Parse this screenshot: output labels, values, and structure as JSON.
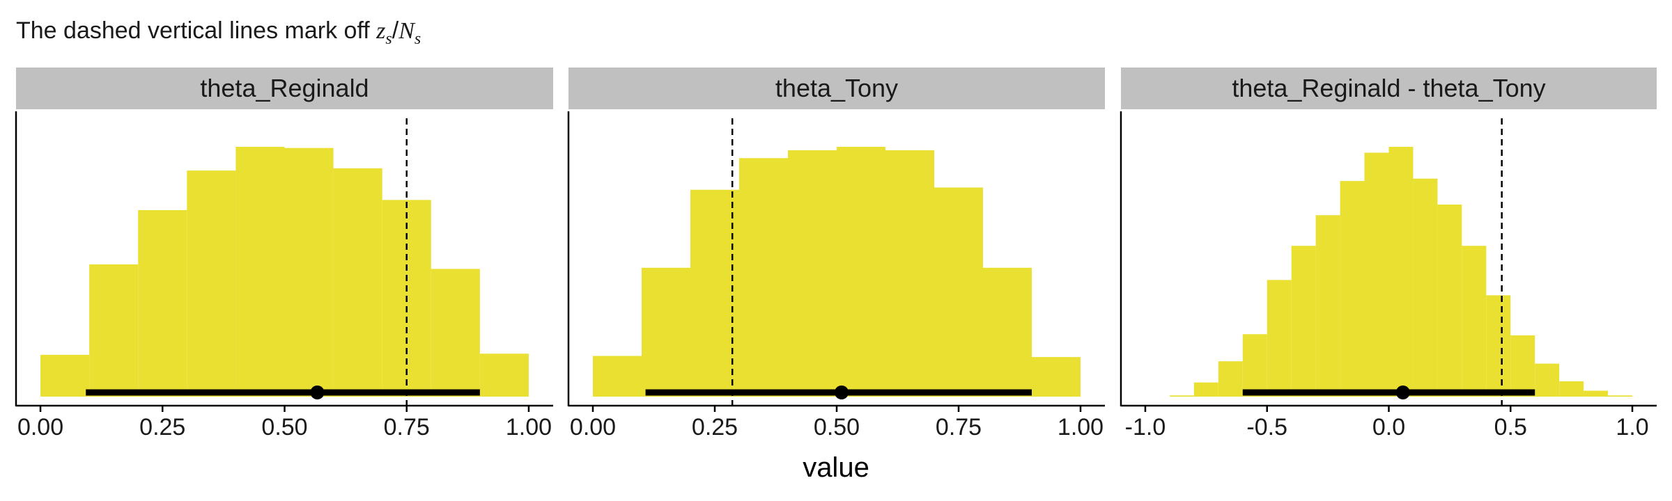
{
  "subtitle": {
    "prefix": "The dashed vertical lines mark off ",
    "z": "z",
    "sub1": "s",
    "slash": "/",
    "N": "N",
    "sub2": "s"
  },
  "xlabel": "value",
  "colors": {
    "bar_fill": "#EAE032",
    "strip_bg": "#C0C0C0",
    "interval": "#000000",
    "dashed": "#000000"
  },
  "chart_data": [
    {
      "type": "histogram",
      "title": "theta_Reginald",
      "xlim": [
        -0.05,
        1.05
      ],
      "xticks": [
        0.0,
        0.25,
        0.5,
        0.75,
        1.0
      ],
      "xtick_labels": [
        "0.00",
        "0.25",
        "0.50",
        "0.75",
        "1.00"
      ],
      "bin_edges": [
        0.0,
        0.1,
        0.2,
        0.3,
        0.4,
        0.5,
        0.6,
        0.7,
        0.8,
        0.9,
        1.0
      ],
      "counts": [
        37,
        117,
        165,
        200,
        221,
        220,
        202,
        174,
        113,
        38
      ],
      "dashed_line": 0.75,
      "point_estimate": 0.567,
      "interval": [
        0.093,
        0.9
      ]
    },
    {
      "type": "histogram",
      "title": "theta_Tony",
      "xlim": [
        -0.05,
        1.05
      ],
      "xticks": [
        0.0,
        0.25,
        0.5,
        0.75,
        1.0
      ],
      "xtick_labels": [
        "0.00",
        "0.25",
        "0.50",
        "0.75",
        "1.00"
      ],
      "bin_edges": [
        0.0,
        0.1,
        0.2,
        0.3,
        0.4,
        0.5,
        0.6,
        0.7,
        0.8,
        0.9,
        1.0
      ],
      "counts": [
        36,
        114,
        183,
        211,
        218,
        221,
        218,
        185,
        114,
        35
      ],
      "dashed_line": 0.286,
      "point_estimate": 0.51,
      "interval": [
        0.108,
        0.9
      ]
    },
    {
      "type": "histogram",
      "title": "theta_Reginald - theta_Tony",
      "xlim": [
        -1.1,
        1.1
      ],
      "xticks": [
        -1.0,
        -0.5,
        0.0,
        0.5,
        1.0
      ],
      "xtick_labels": [
        "-1.0",
        "-0.5",
        "0.0",
        "0.5",
        "1.0"
      ],
      "bin_edges": [
        -1.0,
        -0.9,
        -0.8,
        -0.7,
        -0.6,
        -0.5,
        -0.4,
        -0.3,
        -0.2,
        -0.1,
        0.0,
        0.1,
        0.2,
        0.3,
        0.4,
        0.5,
        0.6,
        0.7,
        0.8,
        0.9,
        1.0
      ],
      "counts": [
        0,
        1,
        12,
        30,
        53,
        99,
        128,
        154,
        183,
        207,
        212,
        185,
        163,
        128,
        86,
        52,
        28,
        13,
        5,
        1
      ],
      "dashed_line": 0.464,
      "point_estimate": 0.058,
      "interval": [
        -0.6,
        0.6
      ]
    }
  ]
}
